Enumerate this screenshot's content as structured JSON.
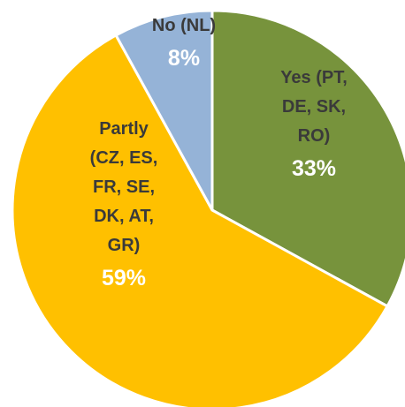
{
  "chart_data": {
    "type": "pie",
    "categories": [
      "Yes (PT, DE, SK, RO)",
      "Partly (CZ, ES, FR, SE, DK, AT, GR)",
      "No (NL)"
    ],
    "values": [
      33,
      59,
      8
    ],
    "value_labels": [
      "33%",
      "59%",
      "8%"
    ],
    "colors": [
      "#77933c",
      "#ffc000",
      "#95b3d7"
    ]
  }
}
